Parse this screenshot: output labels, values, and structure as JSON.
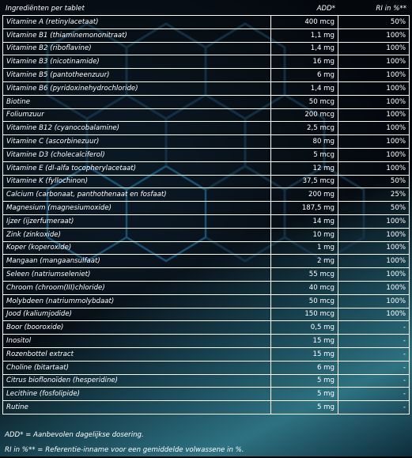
{
  "header": {
    "ingredient": "Ingrediënten per tablet",
    "add": "ADD*",
    "ri": "RI in %**"
  },
  "rows": [
    {
      "name": "Vitamine A (retinylacetaat)",
      "amount": "400 mcg",
      "ri": "50%"
    },
    {
      "name": "Vitamine B1 (thiaminemononitraat)",
      "amount": "1,1 mg",
      "ri": "100%"
    },
    {
      "name": "Vitamine B2 (riboflavine)",
      "amount": "1,4 mg",
      "ri": "100%"
    },
    {
      "name": "Vitamine B3 (nicotinamide)",
      "amount": "16 mg",
      "ri": "100%"
    },
    {
      "name": "Vitamine B5 (pantotheenzuur)",
      "amount": "6 mg",
      "ri": "100%"
    },
    {
      "name": "Vitamine B6 (pyridoxinehydrochloride)",
      "amount": "1,4 mg",
      "ri": "100%"
    },
    {
      "name": "Biotine",
      "amount": "50 mcg",
      "ri": "100%"
    },
    {
      "name": "Foliumzuur",
      "amount": "200 mcg",
      "ri": "100%"
    },
    {
      "name": "Vitamine B12 (cyanocobalamine)",
      "amount": "2,5 mcg",
      "ri": "100%"
    },
    {
      "name": "Vitamine C (ascorbinezuur)",
      "amount": "80 mg",
      "ri": "100%"
    },
    {
      "name": "Vitamine D3 (cholecalciferol)",
      "amount": "5 mcg",
      "ri": "100%"
    },
    {
      "name": "Vitamine E (dl-alfa tocopherylacetaat)",
      "amount": "12 mg",
      "ri": "100%"
    },
    {
      "name": "Vitamine K (fyllochinon)",
      "amount": "37,5 mcg",
      "ri": "50%"
    },
    {
      "name": "Calcium (carbonaat, panthothenaat en fosfaat)",
      "amount": "200 mg",
      "ri": "25%"
    },
    {
      "name": "Magnesium (magnesiumoxide)",
      "amount": "187,5 mg",
      "ri": "50%"
    },
    {
      "name": "Ijzer (ijzerfumeraat)",
      "amount": "14 mg",
      "ri": "100%"
    },
    {
      "name": "Zink (zinkoxide)",
      "amount": "10 mg",
      "ri": "100%"
    },
    {
      "name": "Koper (koperoxide)",
      "amount": "1 mg",
      "ri": "100%"
    },
    {
      "name": "Mangaan (mangaansulfaat)",
      "amount": "2 mg",
      "ri": "100%"
    },
    {
      "name": "Seleen (natriumseleniet)",
      "amount": "55 mcg",
      "ri": "100%"
    },
    {
      "name": "Chroom (chroom(III)chloride)",
      "amount": "40 mcg",
      "ri": "100%"
    },
    {
      "name": "Molybdeen (natriummolybdaat)",
      "amount": "50 mcg",
      "ri": "100%"
    },
    {
      "name": "Jood (kaliumjodide)",
      "amount": "150 mcg",
      "ri": "100%"
    },
    {
      "name": "Boor (booroxide)",
      "amount": "0,5 mg",
      "ri": "-"
    },
    {
      "name": "Inositol",
      "amount": "15 mg",
      "ri": "-"
    },
    {
      "name": "Rozenbottel extract",
      "amount": "15 mg",
      "ri": "-"
    },
    {
      "name": "Choline (bitartaat)",
      "amount": "6 mg",
      "ri": "-"
    },
    {
      "name": "Citrus bioflonoïden (hesperidine)",
      "amount": "5 mg",
      "ri": "-"
    },
    {
      "name": "Lecithine (fosfolipide)",
      "amount": "5 mg",
      "ri": "-"
    },
    {
      "name": "Rutine",
      "amount": "5 mg",
      "ri": "-"
    }
  ],
  "footnotes": {
    "add": "ADD* = Aanbevolen dagelijkse dosering.",
    "ri": "RI in %** = Referentie-inname voor een gemiddelde volwassene in %."
  }
}
